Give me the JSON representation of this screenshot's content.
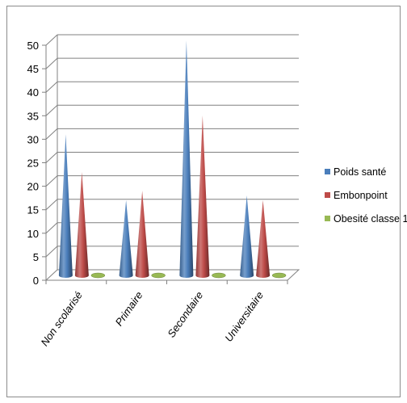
{
  "chart_data": {
    "type": "bar",
    "style": "3d-cone",
    "categories": [
      "Non scolarisé",
      "Primaire",
      "Secondaire",
      "Universitaire"
    ],
    "series": [
      {
        "name": "Poids santé",
        "color": "#4a7ebb",
        "values": [
          30,
          16,
          50,
          17
        ]
      },
      {
        "name": "Embonpoint",
        "color": "#be4b48",
        "values": [
          22,
          18,
          34,
          16
        ]
      },
      {
        "name": "Obesité classe 1",
        "color": "#98b954",
        "values": [
          0,
          0,
          0,
          0
        ]
      }
    ],
    "yticks": [
      "0",
      "5",
      "10",
      "15",
      "20",
      "25",
      "30",
      "35",
      "40",
      "45",
      "50"
    ],
    "ylim": [
      0,
      50
    ],
    "grid": true,
    "legend_position": "right",
    "title": "",
    "xlabel": "",
    "ylabel": ""
  }
}
